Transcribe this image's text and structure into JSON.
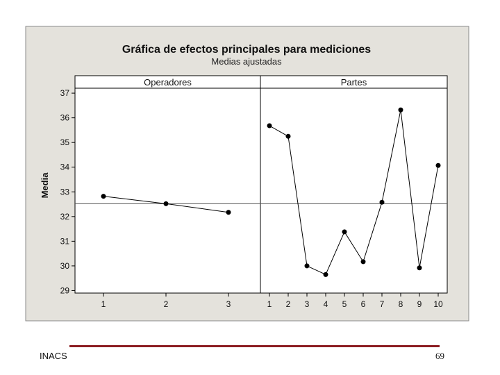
{
  "chart_data": {
    "type": "line",
    "title": "Gráfica de efectos principales para mediciones",
    "subtitle": "Medias ajustadas",
    "ylabel": "Media",
    "ylim": [
      28.9,
      37.2
    ],
    "yticks": [
      29,
      30,
      31,
      32,
      33,
      34,
      35,
      36,
      37
    ],
    "reference_line": 32.52,
    "panels": [
      {
        "name": "Operadores",
        "categories": [
          "1",
          "2",
          "3"
        ],
        "values": [
          32.82,
          32.52,
          32.17
        ]
      },
      {
        "name": "Partes",
        "categories": [
          "1",
          "2",
          "3",
          "4",
          "5",
          "6",
          "7",
          "8",
          "9",
          "10"
        ],
        "values": [
          35.68,
          35.25,
          30.0,
          29.65,
          31.38,
          30.17,
          32.58,
          36.32,
          29.92,
          34.07
        ]
      }
    ],
    "colors": {
      "background": "#e4e2dc",
      "plot": "#ffffff",
      "line": "#000000",
      "reference": "#555555"
    }
  },
  "footer": {
    "left": "INACS",
    "right": "69",
    "rule_color": "#8c1d22"
  }
}
